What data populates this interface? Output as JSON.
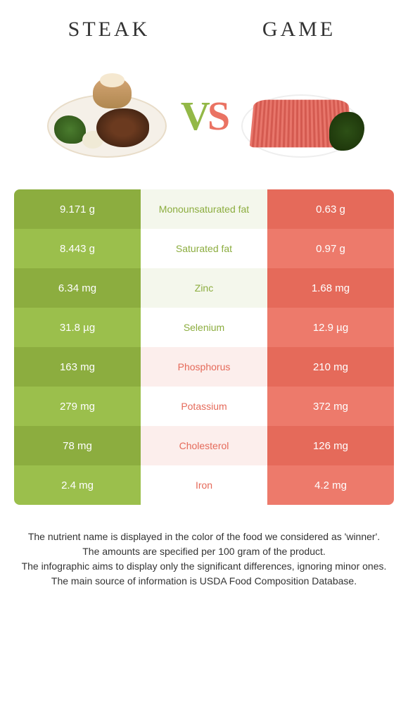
{
  "header": {
    "left_title": "STEAK",
    "right_title": "GAME"
  },
  "vs": {
    "v": "V",
    "s": "S"
  },
  "colors": {
    "green_dark": "#8cad3f",
    "green_light": "#9bbf4c",
    "orange_dark": "#e56a5a",
    "orange_light": "#ed7a6b",
    "mid_green_tint": "#f4f7ec",
    "mid_orange_tint": "#fceeec",
    "text_green": "#8cad3f",
    "text_orange": "#e56a5a"
  },
  "rows": [
    {
      "left": "9.171 g",
      "mid": "Monounsaturated fat",
      "right": "0.63 g",
      "winner": "left"
    },
    {
      "left": "8.443 g",
      "mid": "Saturated fat",
      "right": "0.97 g",
      "winner": "left"
    },
    {
      "left": "6.34 mg",
      "mid": "Zinc",
      "right": "1.68 mg",
      "winner": "left"
    },
    {
      "left": "31.8 µg",
      "mid": "Selenium",
      "right": "12.9 µg",
      "winner": "left"
    },
    {
      "left": "163 mg",
      "mid": "Phosphorus",
      "right": "210 mg",
      "winner": "right"
    },
    {
      "left": "279 mg",
      "mid": "Potassium",
      "right": "372 mg",
      "winner": "right"
    },
    {
      "left": "78 mg",
      "mid": "Cholesterol",
      "right": "126 mg",
      "winner": "right"
    },
    {
      "left": "2.4 mg",
      "mid": "Iron",
      "right": "4.2 mg",
      "winner": "right"
    }
  ],
  "footer": {
    "line1": "The nutrient name is displayed in the color of the food we considered as 'winner'.",
    "line2": "The amounts are specified per 100 gram of the product.",
    "line3": "The infographic aims to display only the significant differences, ignoring minor ones.",
    "line4": "The main source of information is USDA Food Composition Database."
  }
}
